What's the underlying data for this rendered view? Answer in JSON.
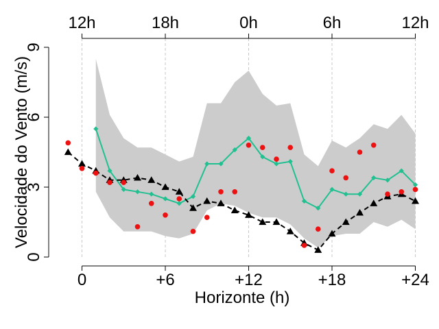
{
  "chart_data": {
    "type": "line",
    "xlabel": "Horizonte (h)",
    "ylabel": "Velocidade do Vento (m/s)",
    "xlim": [
      -2,
      25
    ],
    "ylim": [
      0,
      9
    ],
    "grid": "vertical dashed",
    "bottom_ticks": [
      {
        "v": 0,
        "label": "0"
      },
      {
        "v": 6,
        "label": "+6"
      },
      {
        "v": 12,
        "label": "+12"
      },
      {
        "v": 18,
        "label": "+18"
      },
      {
        "v": 24,
        "label": "+24"
      }
    ],
    "top_ticks": [
      {
        "v": 0,
        "label": "12h"
      },
      {
        "v": 6,
        "label": "18h"
      },
      {
        "v": 12,
        "label": "0h"
      },
      {
        "v": 18,
        "label": "6h"
      },
      {
        "v": 24,
        "label": "12h"
      }
    ],
    "y_ticks": [
      {
        "v": 0,
        "label": "0"
      },
      {
        "v": 3,
        "label": "3"
      },
      {
        "v": 6,
        "label": "6"
      },
      {
        "v": 9,
        "label": "9"
      }
    ],
    "band": {
      "color": "#cccccc",
      "x": [
        1,
        2,
        3,
        4,
        5,
        6,
        7,
        8,
        9,
        10,
        11,
        12,
        13,
        14,
        15,
        16,
        17,
        18,
        19,
        20,
        21,
        22,
        23,
        24
      ],
      "upper": [
        8.5,
        6.1,
        5.1,
        4.7,
        4.7,
        4.4,
        4.1,
        4.3,
        6.6,
        6.6,
        7.5,
        8.0,
        7.0,
        6.5,
        6.6,
        4.4,
        3.9,
        5.0,
        4.7,
        5.1,
        5.7,
        5.5,
        6.1,
        5.3
      ],
      "lower": [
        2.8,
        1.7,
        1.1,
        1.1,
        1.1,
        0.9,
        0.8,
        1.0,
        2.0,
        2.3,
        2.2,
        1.9,
        1.7,
        1.7,
        1.4,
        0.8,
        0.4,
        0.9,
        1.0,
        1.0,
        1.5,
        1.3,
        1.6,
        1.2
      ]
    },
    "series": [
      {
        "color": "#20c090",
        "marker": "diamond",
        "line": "solid",
        "x": [
          1,
          2,
          3,
          4,
          5,
          6,
          7,
          8,
          9,
          10,
          11,
          12,
          13,
          14,
          15,
          16,
          17,
          18,
          19,
          20,
          21,
          22,
          23,
          24
        ],
        "y": [
          5.5,
          3.7,
          2.9,
          2.8,
          2.7,
          2.5,
          2.3,
          2.6,
          4.0,
          4.0,
          4.6,
          5.1,
          4.3,
          4.0,
          4.1,
          2.4,
          2.1,
          2.9,
          2.7,
          2.7,
          3.4,
          3.3,
          3.7,
          3.1
        ]
      },
      {
        "color": "#000000",
        "marker": "triangle",
        "line": "dashed",
        "x": [
          -1,
          0,
          1,
          2,
          3,
          4,
          5,
          6,
          7,
          8,
          9,
          10,
          11,
          12,
          13,
          14,
          15,
          16,
          17,
          18,
          19,
          20,
          21,
          22,
          23,
          24
        ],
        "y": [
          4.5,
          4.0,
          3.7,
          3.3,
          3.3,
          3.4,
          3.3,
          3.0,
          2.8,
          2.1,
          2.4,
          2.3,
          2.0,
          1.8,
          1.5,
          1.5,
          1.1,
          0.6,
          0.3,
          1.0,
          1.5,
          1.9,
          2.3,
          2.6,
          2.7,
          2.4
        ]
      },
      {
        "color": "#ee1111",
        "marker": "circle",
        "line": "none",
        "x": [
          -1,
          0,
          1,
          2,
          3,
          4,
          5,
          6,
          7,
          8,
          9,
          10,
          11,
          12,
          13,
          14,
          15,
          16,
          17,
          18,
          19,
          20,
          21,
          22,
          23,
          24
        ],
        "y": [
          4.9,
          3.8,
          3.6,
          3.2,
          3.2,
          1.3,
          2.3,
          1.8,
          2.5,
          1.1,
          1.7,
          2.8,
          2.8,
          4.8,
          4.7,
          4.2,
          4.7,
          0.5,
          1.2,
          3.7,
          3.4,
          4.5,
          4.8,
          2.7,
          2.8,
          2.9
        ]
      }
    ]
  }
}
